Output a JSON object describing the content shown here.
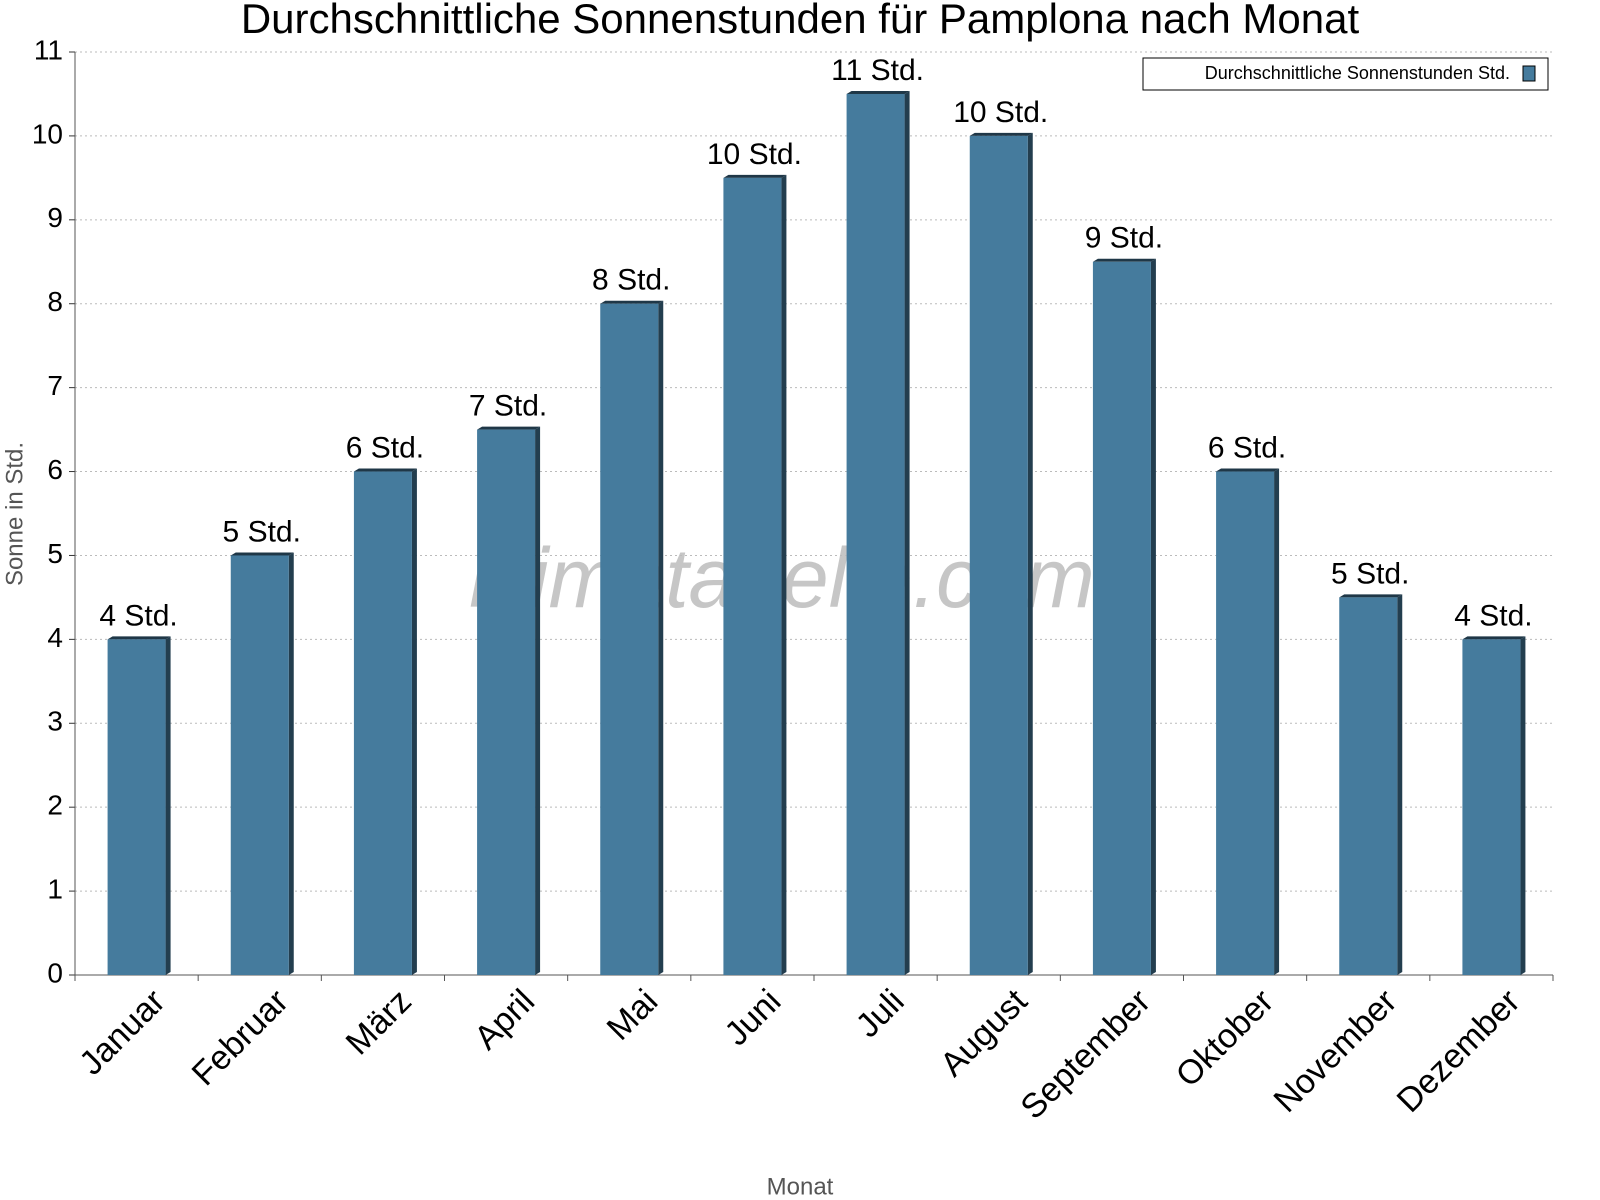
{
  "chart_data": {
    "type": "bar",
    "title": "Durchschnittliche Sonnenstunden für Pamplona nach Monat",
    "x_label": "Monat",
    "y_label": "Sonne in Std.",
    "watermark": "klimatabelle.com",
    "categories": [
      "Januar",
      "Februar",
      "März",
      "April",
      "Mai",
      "Juni",
      "Juli",
      "August",
      "September",
      "Oktober",
      "November",
      "Dezember"
    ],
    "series": [
      {
        "name": "Durchschnittliche Sonnenstunden Std.",
        "color": "#457b9d",
        "values": [
          4,
          5,
          6,
          6.5,
          8,
          9.5,
          10.5,
          10,
          8.5,
          6,
          4.5,
          4
        ],
        "value_labels": [
          "4 Std.",
          "5 Std.",
          "6 Std.",
          "7 Std.",
          "8 Std.",
          "10 Std.",
          "11 Std.",
          "10 Std.",
          "9 Std.",
          "6 Std.",
          "5 Std.",
          "4 Std."
        ]
      }
    ],
    "ylim": [
      0,
      11
    ],
    "yticks": [
      0,
      1,
      2,
      3,
      4,
      5,
      6,
      7,
      8,
      9,
      10,
      11
    ],
    "grid": true,
    "legend": "top-right"
  }
}
